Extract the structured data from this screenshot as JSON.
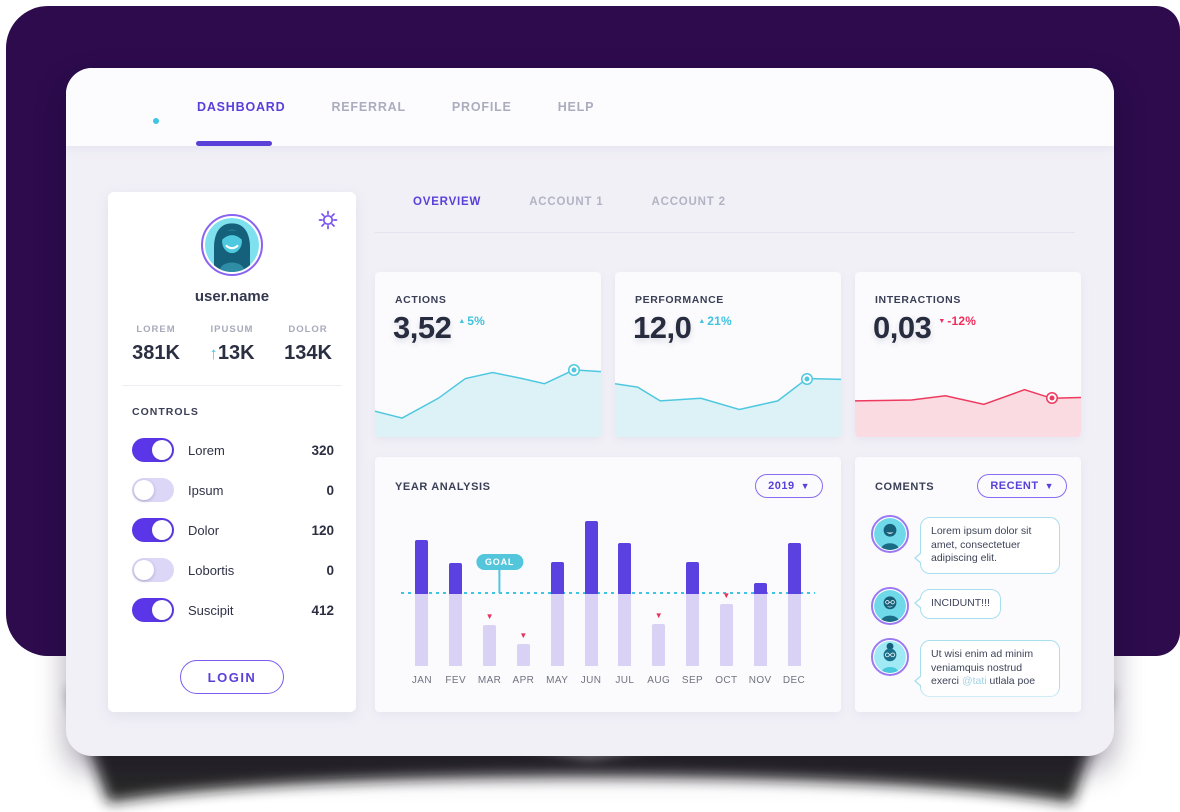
{
  "nav": {
    "items": [
      {
        "label": "DASHBOARD",
        "active": true
      },
      {
        "label": "REFERRAL",
        "active": false
      },
      {
        "label": "PROFILE",
        "active": false
      },
      {
        "label": "HELP",
        "active": false
      }
    ]
  },
  "profile_card": {
    "username": "user.name",
    "stats": [
      {
        "label": "LOREM",
        "value": "381K"
      },
      {
        "label": "IPUSUM",
        "value": "13K",
        "arrow": "↑"
      },
      {
        "label": "DOLOR",
        "value": "134K"
      }
    ],
    "controls_title": "CONTROLS",
    "controls": [
      {
        "label": "Lorem",
        "value": "320",
        "on": true
      },
      {
        "label": "Ipsum",
        "value": "0",
        "on": false
      },
      {
        "label": "Dolor",
        "value": "120",
        "on": true
      },
      {
        "label": "Lobortis",
        "value": "0",
        "on": false
      },
      {
        "label": "Suscipit",
        "value": "412",
        "on": true
      }
    ],
    "login_label": "LOGIN"
  },
  "tabs": [
    {
      "label": "OVERVIEW",
      "active": true
    },
    {
      "label": "ACCOUNT 1",
      "active": false
    },
    {
      "label": "ACCOUNT 2",
      "active": false
    }
  ],
  "stat_cards": [
    {
      "id": "actions",
      "label": "ACTIONS",
      "value": "3,52",
      "delta": "5%",
      "delta_dir": "up"
    },
    {
      "id": "performance",
      "label": "PERFORMANCE",
      "value": "12,0",
      "delta": "21%",
      "delta_dir": "up"
    },
    {
      "id": "interactions",
      "label": "INTERACTIONS",
      "value": "0,03",
      "delta": "-12%",
      "delta_dir": "down"
    }
  ],
  "year_analysis": {
    "title": "YEAR ANALYSIS",
    "year": "2019"
  },
  "comments": {
    "title": "COMENTS",
    "filter_label": "RECENT",
    "items": [
      {
        "text": "Lorem ipsum dolor sit amet, consectetuer adipiscing elit."
      },
      {
        "text": "INCIDUNT!!!"
      },
      {
        "text_before": "Ut wisi enim ad minim veniamquis nostrud exerci ",
        "mention": "@tati",
        "text_after": " utlala poe"
      }
    ]
  },
  "chart_data": [
    {
      "id": "actions",
      "type": "area",
      "title": "ACTIONS sparkline",
      "x": [
        0,
        12,
        28,
        40,
        52,
        65,
        75,
        88,
        100
      ],
      "values": [
        30,
        22,
        45,
        68,
        75,
        68,
        62,
        78,
        76
      ],
      "marker_index": 7,
      "line_color": "#4FC8DF",
      "fill_color": "#DCF2F7",
      "ylim": [
        0,
        100
      ],
      "grid": false
    },
    {
      "id": "performance",
      "type": "area",
      "title": "PERFORMANCE sparkline",
      "x": [
        0,
        10,
        20,
        38,
        55,
        72,
        85,
        100
      ],
      "values": [
        62,
        58,
        42,
        45,
        32,
        42,
        68,
        67
      ],
      "marker_index": 6,
      "line_color": "#4FC8DF",
      "fill_color": "#DCF2F7",
      "ylim": [
        0,
        100
      ],
      "grid": false
    },
    {
      "id": "interactions",
      "type": "area",
      "title": "INTERACTIONS sparkline",
      "x": [
        0,
        25,
        40,
        57,
        75,
        87,
        100
      ],
      "values": [
        42,
        43,
        48,
        38,
        55,
        45,
        46
      ],
      "marker_index": 5,
      "line_color": "#EE3A5F",
      "fill_color": "#FADBE2",
      "ylim": [
        0,
        100
      ],
      "grid": false
    },
    {
      "id": "year",
      "type": "bar",
      "title": "YEAR ANALYSIS 2019",
      "categories": [
        "JAN",
        "FEV",
        "MAR",
        "APR",
        "MAY",
        "JUN",
        "JUL",
        "AUG",
        "SEP",
        "OCT",
        "NOV",
        "DEC"
      ],
      "values": [
        87,
        71,
        28,
        15,
        72,
        100,
        85,
        29,
        72,
        43,
        57,
        85
      ],
      "goal": 50,
      "goal_label": "GOAL",
      "goal_badge_column": 2,
      "ylim": [
        0,
        100
      ],
      "grid": false,
      "legend": "none",
      "bar_color": "#5A41E0",
      "below_goal_color": "#D9D2F5",
      "goal_line_color": "#3EC6E0",
      "alert_color": "#E8315B"
    }
  ],
  "colors": {
    "accent_purple": "#5A3FD8",
    "toggle_purple": "#5A36E8",
    "bar_purple": "#5A41E0",
    "lavender": "#D9D2F5",
    "cyan": "#3EC6E0",
    "red": "#E8315B",
    "hero_bg": "#2D0B4D",
    "card_bg": "#FBFBFE",
    "content_bg": "#F1F0F7"
  }
}
